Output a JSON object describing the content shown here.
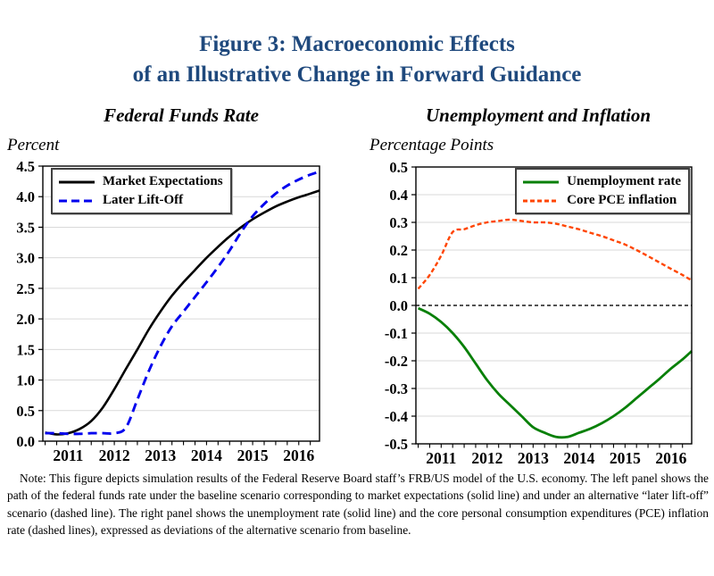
{
  "title": {
    "line1": "Figure 3: Macroeconomic Effects",
    "line2": "of an Illustrative Change in Forward Guidance",
    "color": "#1F497D"
  },
  "note": {
    "text": "Note:  This figure depicts simulation results of the Federal Reserve Board staff’s FRB/US model of the U.S. economy.  The left panel shows the path of the federal funds rate under the baseline scenario corresponding to market expectations (solid line) and under an alternative “later lift-off” scenario (dashed line).  The right panel shows the unemployment rate (solid line) and the core personal consumption expenditures (PCE) inflation rate (dashed lines), expressed as deviations of the alternative scenario from baseline."
  },
  "chart_data": [
    {
      "type": "line",
      "title": "Federal Funds Rate",
      "ylabel": "Percent",
      "xlim": [
        2010.45,
        2016.45
      ],
      "ylim": [
        0,
        4.5
      ],
      "yticks": [
        0.0,
        0.5,
        1.0,
        1.5,
        2.0,
        2.5,
        3.0,
        3.5,
        4.0,
        4.5
      ],
      "xticks": [
        2011,
        2012,
        2013,
        2014,
        2015,
        2016
      ],
      "xtick_minor_step": 0.25,
      "grid": true,
      "grid_color": "#d9d9d9",
      "zero_line": false,
      "legend_position": "top-left",
      "series": [
        {
          "name": "Market Expectations",
          "color": "#000000",
          "dash": null,
          "width": 2.6,
          "points": [
            [
              2010.5,
              0.14
            ],
            [
              2010.75,
              0.11
            ],
            [
              2011,
              0.13
            ],
            [
              2011.25,
              0.2
            ],
            [
              2011.5,
              0.33
            ],
            [
              2011.75,
              0.55
            ],
            [
              2012,
              0.85
            ],
            [
              2012.25,
              1.18
            ],
            [
              2012.5,
              1.5
            ],
            [
              2012.75,
              1.83
            ],
            [
              2013,
              2.12
            ],
            [
              2013.25,
              2.38
            ],
            [
              2013.5,
              2.6
            ],
            [
              2013.75,
              2.8
            ],
            [
              2014,
              3.0
            ],
            [
              2014.25,
              3.18
            ],
            [
              2014.5,
              3.35
            ],
            [
              2014.75,
              3.5
            ],
            [
              2015,
              3.63
            ],
            [
              2015.25,
              3.74
            ],
            [
              2015.5,
              3.84
            ],
            [
              2015.75,
              3.92
            ],
            [
              2016,
              3.99
            ],
            [
              2016.25,
              4.05
            ],
            [
              2016.45,
              4.1
            ]
          ]
        },
        {
          "name": "Later Lift-Off",
          "color": "#0000ee",
          "dash": "10,6",
          "width": 2.9,
          "points": [
            [
              2010.5,
              0.13
            ],
            [
              2010.75,
              0.13
            ],
            [
              2011,
              0.12
            ],
            [
              2011.25,
              0.12
            ],
            [
              2011.5,
              0.13
            ],
            [
              2011.75,
              0.13
            ],
            [
              2012,
              0.13
            ],
            [
              2012.25,
              0.22
            ],
            [
              2012.5,
              0.68
            ],
            [
              2012.75,
              1.15
            ],
            [
              2013,
              1.55
            ],
            [
              2013.25,
              1.88
            ],
            [
              2013.5,
              2.12
            ],
            [
              2013.75,
              2.36
            ],
            [
              2014,
              2.6
            ],
            [
              2014.25,
              2.85
            ],
            [
              2014.5,
              3.12
            ],
            [
              2014.75,
              3.42
            ],
            [
              2015,
              3.68
            ],
            [
              2015.25,
              3.88
            ],
            [
              2015.5,
              4.05
            ],
            [
              2015.75,
              4.18
            ],
            [
              2016,
              4.28
            ],
            [
              2016.25,
              4.36
            ],
            [
              2016.45,
              4.41
            ]
          ]
        }
      ]
    },
    {
      "type": "line",
      "title": "Unemployment and Inflation",
      "ylabel": "Percentage Points",
      "xlim": [
        2010.45,
        2016.45
      ],
      "ylim": [
        -0.5,
        0.5
      ],
      "yticks": [
        -0.5,
        -0.4,
        -0.3,
        -0.2,
        -0.1,
        0.0,
        0.1,
        0.2,
        0.3,
        0.4,
        0.5
      ],
      "xticks": [
        2011,
        2012,
        2013,
        2014,
        2015,
        2016
      ],
      "xtick_minor_step": 0.25,
      "grid": true,
      "grid_color": "#d9d9d9",
      "zero_line": true,
      "legend_position": "top-right",
      "series": [
        {
          "name": "Unemployment rate",
          "color": "#088008",
          "dash": null,
          "width": 2.8,
          "points": [
            [
              2010.5,
              -0.01
            ],
            [
              2010.75,
              -0.03
            ],
            [
              2011,
              -0.06
            ],
            [
              2011.25,
              -0.1
            ],
            [
              2011.5,
              -0.15
            ],
            [
              2011.75,
              -0.21
            ],
            [
              2012,
              -0.27
            ],
            [
              2012.25,
              -0.32
            ],
            [
              2012.5,
              -0.36
            ],
            [
              2012.75,
              -0.4
            ],
            [
              2013,
              -0.44
            ],
            [
              2013.25,
              -0.46
            ],
            [
              2013.5,
              -0.475
            ],
            [
              2013.75,
              -0.475
            ],
            [
              2014,
              -0.46
            ],
            [
              2014.25,
              -0.445
            ],
            [
              2014.5,
              -0.425
            ],
            [
              2014.75,
              -0.4
            ],
            [
              2015,
              -0.37
            ],
            [
              2015.25,
              -0.335
            ],
            [
              2015.5,
              -0.3
            ],
            [
              2015.75,
              -0.265
            ],
            [
              2016,
              -0.228
            ],
            [
              2016.25,
              -0.195
            ],
            [
              2016.45,
              -0.165
            ]
          ]
        },
        {
          "name": "Core PCE inflation",
          "color": "#ff4500",
          "dash": "5,3",
          "width": 2.4,
          "points": [
            [
              2010.5,
              0.06
            ],
            [
              2010.75,
              0.11
            ],
            [
              2011,
              0.18
            ],
            [
              2011.25,
              0.265
            ],
            [
              2011.5,
              0.275
            ],
            [
              2011.75,
              0.29
            ],
            [
              2012,
              0.3
            ],
            [
              2012.25,
              0.305
            ],
            [
              2012.5,
              0.31
            ],
            [
              2012.75,
              0.305
            ],
            [
              2013,
              0.3
            ],
            [
              2013.25,
              0.3
            ],
            [
              2013.5,
              0.295
            ],
            [
              2013.75,
              0.285
            ],
            [
              2014,
              0.275
            ],
            [
              2014.25,
              0.262
            ],
            [
              2014.5,
              0.25
            ],
            [
              2014.75,
              0.235
            ],
            [
              2015,
              0.22
            ],
            [
              2015.25,
              0.2
            ],
            [
              2015.5,
              0.178
            ],
            [
              2015.75,
              0.155
            ],
            [
              2016,
              0.132
            ],
            [
              2016.25,
              0.11
            ],
            [
              2016.45,
              0.09
            ]
          ]
        }
      ]
    }
  ]
}
